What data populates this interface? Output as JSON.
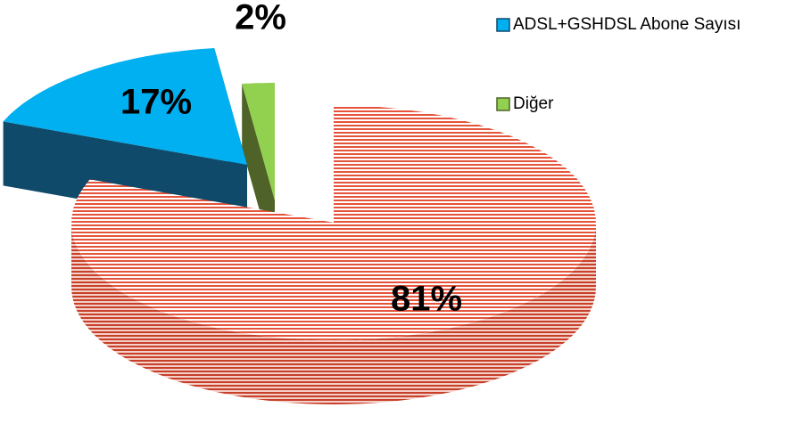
{
  "chart_data": {
    "type": "pie",
    "categories": [
      null,
      "ADSL+GSHDSL Abone Sayısı",
      "Diğer"
    ],
    "values": [
      81,
      17,
      2
    ],
    "value_labels": [
      "81%",
      "17%",
      "2%"
    ],
    "colors": [
      "#e5533a",
      "#00b0f0",
      "#92d050"
    ]
  }
}
